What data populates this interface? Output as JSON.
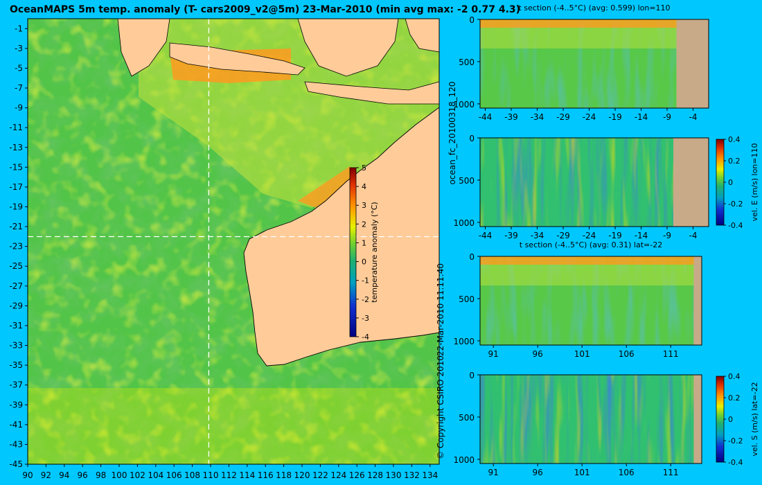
{
  "title": "OceanMAPS 5m temp. anomaly (T- cars2009_v2@5m) 23-Mar-2010 (min avg max: -2 0.77 4.3)",
  "side_label_run": "ocean_fc_20100318_120",
  "side_label_date": "22-Mar-2010 11:11:40",
  "copyright": "© Copyright CSIRO 2010",
  "colors": {
    "background": "#00c8ff",
    "land": "#ffcc99",
    "section_land": "#c8aa88",
    "dashed_line": "#ffffff"
  },
  "chart_data": [
    {
      "id": "map",
      "type": "heatmap",
      "title": "OceanMAPS 5m temp. anomaly (T- cars2009_v2@5m) 23-Mar-2010 (min avg max: -2 0.77 4.3)",
      "stats": {
        "min": -2,
        "avg": 0.77,
        "max": 4.3
      },
      "xlim": [
        90,
        135
      ],
      "ylim": [
        -45,
        0
      ],
      "xticks": [
        "90",
        "92",
        "94",
        "96",
        "98",
        "100",
        "102",
        "104",
        "106",
        "108",
        "110",
        "112",
        "114",
        "116",
        "118",
        "120",
        "122",
        "124",
        "126",
        "128",
        "130",
        "132",
        "134"
      ],
      "yticks": [
        "-1",
        "-3",
        "-5",
        "-7",
        "-9",
        "-11",
        "-13",
        "-15",
        "-17",
        "-19",
        "-21",
        "-23",
        "-25",
        "-27",
        "-29",
        "-31",
        "-33",
        "-35",
        "-37",
        "-39",
        "-41",
        "-43",
        "-45"
      ],
      "section_lon": 110,
      "section_lat": -22,
      "colorbar": {
        "label": "temperature anomaly (°C)",
        "range": [
          -4,
          5
        ],
        "ticks": [
          "5",
          "4",
          "3",
          "2",
          "1",
          "0",
          "-1",
          "-2",
          "-3",
          "-4"
        ]
      }
    },
    {
      "id": "panel1",
      "type": "heatmap",
      "title": "t section (-4..5°C) (avg: 0.599) lon=110",
      "xlim": [
        -45,
        -1
      ],
      "ylim": [
        1050,
        0
      ],
      "xticks": [
        "-44",
        "-39",
        "-34",
        "-29",
        "-24",
        "-19",
        "-14",
        "-9",
        "-4"
      ],
      "yticks": [
        "0",
        "500",
        "1000"
      ],
      "land_from_x": -7.2
    },
    {
      "id": "panel2",
      "type": "heatmap",
      "title": "",
      "xlim": [
        -45,
        -1
      ],
      "ylim": [
        1050,
        0
      ],
      "xticks": [
        "-44",
        "-39",
        "-34",
        "-29",
        "-24",
        "-19",
        "-14",
        "-9",
        "-4"
      ],
      "yticks": [
        "0",
        "500",
        "1000"
      ],
      "land_from_x": -7.8,
      "colorbar": {
        "label": "vel. E (m/s) lon=110",
        "range": [
          -0.4,
          0.4
        ],
        "ticks": [
          "0.4",
          "0.2",
          "0",
          "-0.2",
          "-0.4"
        ]
      }
    },
    {
      "id": "panel3",
      "type": "heatmap",
      "title": "t section (-4..5°C) (avg: 0.31) lat=-22",
      "xlim": [
        89.5,
        114.5
      ],
      "ylim": [
        1050,
        0
      ],
      "xticks": [
        "91",
        "96",
        "101",
        "106",
        "111"
      ],
      "yticks": [
        "0",
        "500",
        "1000"
      ],
      "land_from_x": 113.6
    },
    {
      "id": "panel4",
      "type": "heatmap",
      "title": "",
      "xlim": [
        89.5,
        114.5
      ],
      "ylim": [
        1050,
        0
      ],
      "xticks": [
        "91",
        "96",
        "101",
        "106",
        "111"
      ],
      "yticks": [
        "0",
        "500",
        "1000"
      ],
      "land_from_x": 113.6,
      "colorbar": {
        "label": "vel. S (m/s) lat=-22",
        "range": [
          -0.4,
          0.4
        ],
        "ticks": [
          "0.4",
          "0.2",
          "0",
          "-0.2",
          "-0.4"
        ]
      }
    }
  ]
}
